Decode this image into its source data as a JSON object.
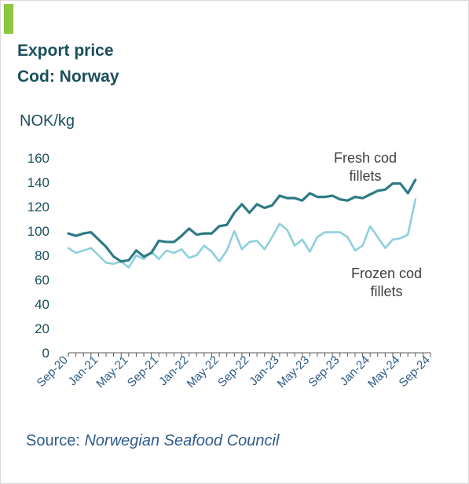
{
  "header": {
    "title_line1": "Export price",
    "title_line2": "Cod: Norway",
    "unit": "NOK/kg"
  },
  "source": {
    "label": "Source: ",
    "name": "Norwegian Seafood Council"
  },
  "colors": {
    "accent": "#8dc63f",
    "fresh": "#2e7a86",
    "frozen": "#8ecfdc",
    "axis": "#595959"
  },
  "chart_data": {
    "type": "line",
    "ylabel": "NOK/kg",
    "ylim": [
      0,
      160
    ],
    "yticks": [
      0,
      20,
      40,
      60,
      80,
      100,
      120,
      140,
      160
    ],
    "grid": false,
    "x": [
      "Sep-20",
      "Oct-20",
      "Nov-20",
      "Dec-20",
      "Jan-21",
      "Feb-21",
      "Mar-21",
      "Apr-21",
      "May-21",
      "Jun-21",
      "Jul-21",
      "Aug-21",
      "Sep-21",
      "Oct-21",
      "Nov-21",
      "Dec-21",
      "Jan-22",
      "Feb-22",
      "Mar-22",
      "Apr-22",
      "May-22",
      "Jun-22",
      "Jul-22",
      "Aug-22",
      "Sep-22",
      "Oct-22",
      "Nov-22",
      "Dec-22",
      "Jan-23",
      "Feb-23",
      "Mar-23",
      "Apr-23",
      "May-23",
      "Jun-23",
      "Jul-23",
      "Aug-23",
      "Sep-23",
      "Oct-23",
      "Nov-23",
      "Dec-23",
      "Jan-24",
      "Feb-24",
      "Mar-24",
      "Apr-24",
      "May-24",
      "Jun-24",
      "Jul-24"
    ],
    "xticks": [
      "Sep-20",
      "Jan-21",
      "May-21",
      "Sep-21",
      "Jan-22",
      "May-22",
      "Sep-22",
      "Jan-23",
      "May-23",
      "Sep-23",
      "Jan-24",
      "May-24",
      "Sep-24"
    ],
    "series": [
      {
        "name": "Fresh cod fillets",
        "values": [
          98,
          96,
          98,
          99,
          93,
          87,
          79,
          75,
          76,
          84,
          79,
          82,
          92,
          91,
          91,
          96,
          102,
          97,
          98,
          98,
          104,
          105,
          115,
          122,
          115,
          122,
          119,
          121,
          129,
          127,
          127,
          125,
          131,
          128,
          128,
          129,
          126,
          125,
          128,
          127,
          130,
          133,
          134,
          139,
          139,
          131,
          142
        ]
      },
      {
        "name": "Frozen cod fillets",
        "values": [
          86,
          82,
          84,
          86,
          80,
          74,
          73,
          75,
          70,
          80,
          77,
          83,
          77,
          84,
          82,
          85,
          78,
          80,
          88,
          83,
          75,
          84,
          100,
          85,
          91,
          92,
          85,
          95,
          106,
          101,
          88,
          93,
          83,
          95,
          99,
          99,
          99,
          95,
          84,
          88,
          104,
          95,
          86,
          93,
          94,
          97,
          126
        ]
      }
    ]
  }
}
